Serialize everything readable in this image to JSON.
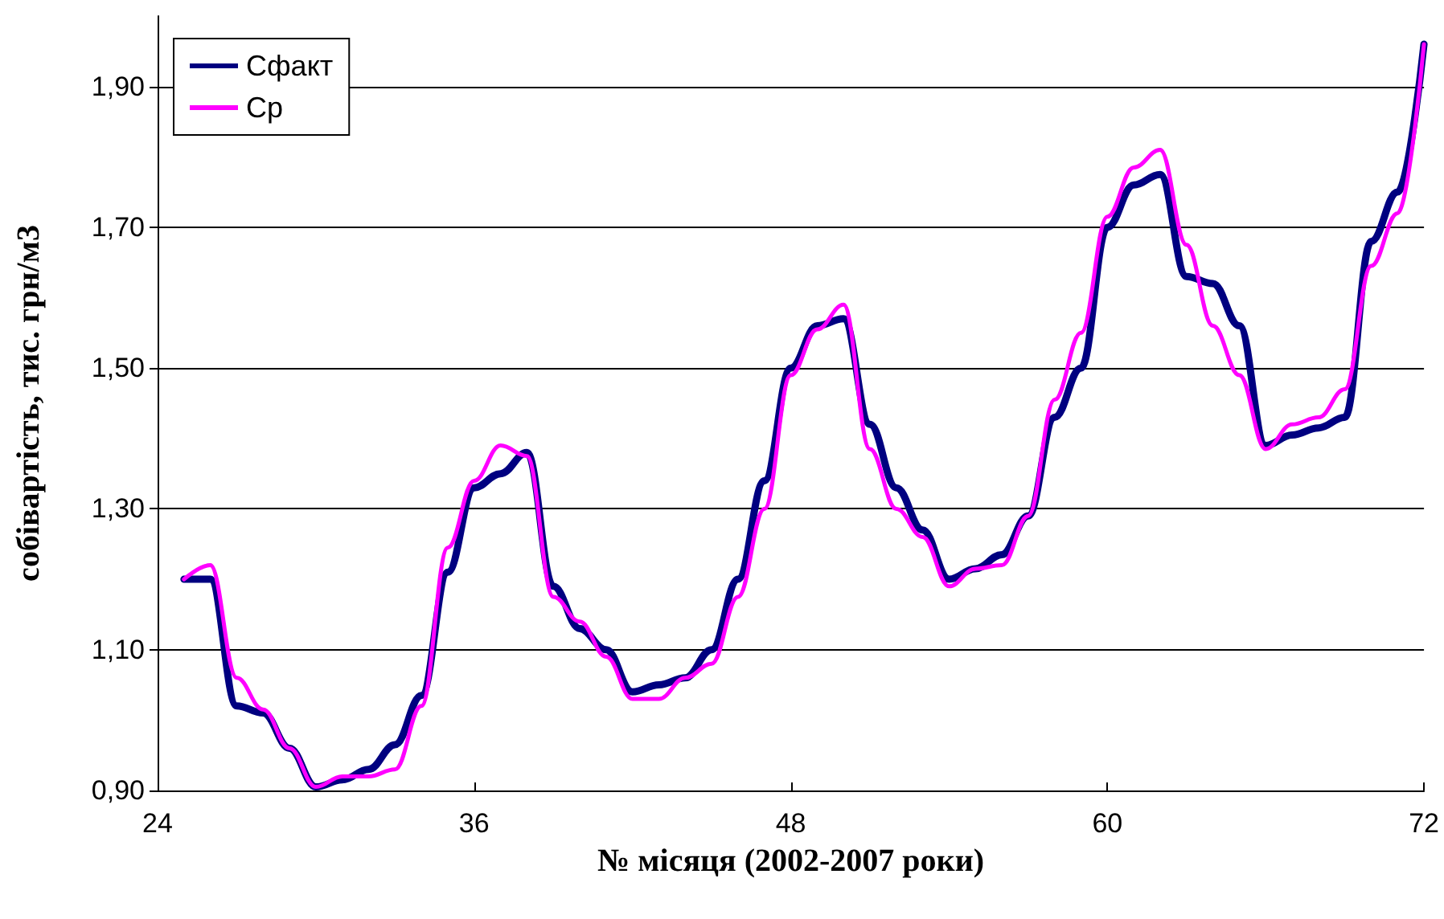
{
  "chart_data": {
    "type": "line",
    "xlabel": "№ місяця (2002-2007 роки)",
    "ylabel": "собівартість, тис. грн/м3",
    "xlim": [
      24,
      72
    ],
    "xticks": [
      24,
      36,
      48,
      60,
      72
    ],
    "ylim": [
      0.9,
      2.0
    ],
    "yticks": [
      {
        "value": 0.9,
        "label": "0,90"
      },
      {
        "value": 1.1,
        "label": "1,10"
      },
      {
        "value": 1.3,
        "label": "1,30"
      },
      {
        "value": 1.5,
        "label": "1,50"
      },
      {
        "value": 1.7,
        "label": "1,70"
      },
      {
        "value": 1.9,
        "label": "1,90"
      }
    ],
    "x": [
      25,
      26,
      27,
      28,
      29,
      30,
      31,
      32,
      33,
      34,
      35,
      36,
      37,
      38,
      39,
      40,
      41,
      42,
      43,
      44,
      45,
      46,
      47,
      48,
      49,
      50,
      51,
      52,
      53,
      54,
      55,
      56,
      57,
      58,
      59,
      60,
      61,
      62,
      63,
      64,
      65,
      66,
      67,
      68,
      69,
      70,
      71,
      72
    ],
    "series": [
      {
        "name": "Сфакт",
        "color": "#000080",
        "values": [
          1.2,
          1.2,
          1.02,
          1.01,
          0.96,
          0.905,
          0.915,
          0.93,
          0.965,
          1.035,
          1.21,
          1.33,
          1.35,
          1.38,
          1.19,
          1.13,
          1.1,
          1.04,
          1.05,
          1.06,
          1.1,
          1.2,
          1.34,
          1.5,
          1.56,
          1.57,
          1.42,
          1.33,
          1.27,
          1.2,
          1.215,
          1.235,
          1.29,
          1.43,
          1.5,
          1.7,
          1.76,
          1.775,
          1.63,
          1.62,
          1.56,
          1.39,
          1.405,
          1.415,
          1.43,
          1.68,
          1.75,
          1.96
        ]
      },
      {
        "name": "Ср",
        "color": "#ff00ff",
        "values": [
          1.2,
          1.22,
          1.06,
          1.015,
          0.96,
          0.905,
          0.92,
          0.92,
          0.93,
          1.02,
          1.245,
          1.34,
          1.39,
          1.375,
          1.175,
          1.14,
          1.09,
          1.03,
          1.03,
          1.06,
          1.08,
          1.175,
          1.3,
          1.49,
          1.555,
          1.59,
          1.385,
          1.3,
          1.26,
          1.19,
          1.215,
          1.22,
          1.29,
          1.455,
          1.55,
          1.715,
          1.785,
          1.81,
          1.675,
          1.56,
          1.49,
          1.385,
          1.42,
          1.43,
          1.47,
          1.645,
          1.72,
          1.96
        ]
      }
    ],
    "grid": "y",
    "legend": "top left",
    "marker": "none",
    "line_style": "solid"
  }
}
